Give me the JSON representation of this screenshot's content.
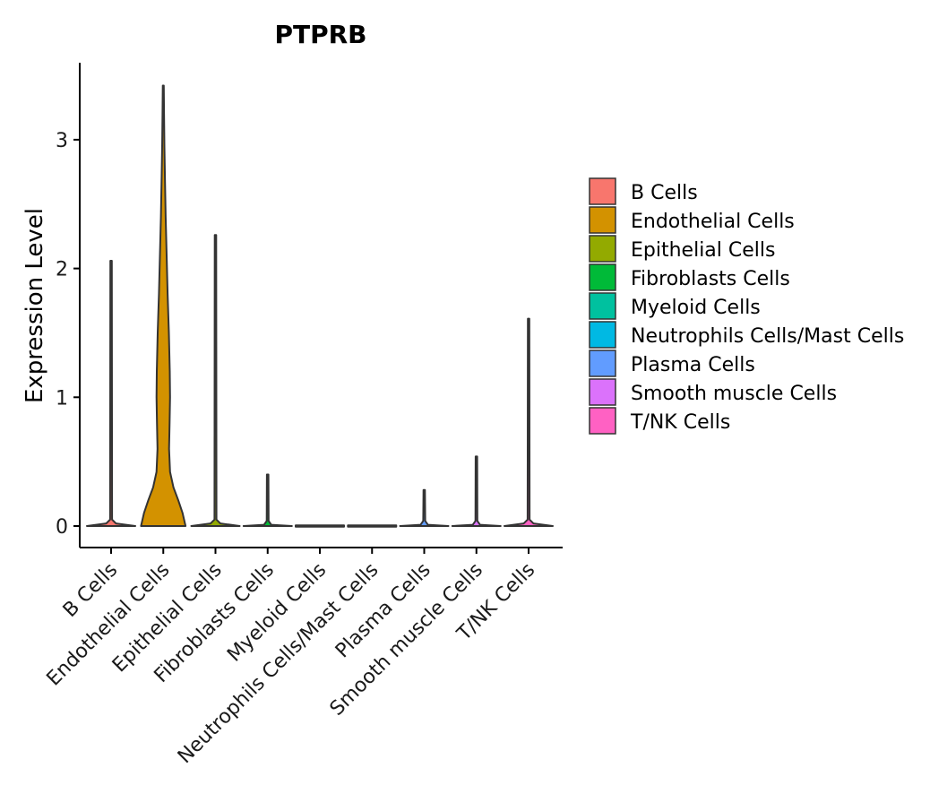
{
  "chart_data": {
    "type": "violin",
    "title": "PTPRB",
    "xlabel": "",
    "ylabel": "Expression Level",
    "ylim": [
      -0.17,
      3.6
    ],
    "yticks": [
      0,
      1,
      2,
      3
    ],
    "categories": [
      "B Cells",
      "Endothelial Cells",
      "Epithelial Cells",
      "Fibroblasts Cells",
      "Myeloid Cells",
      "Neutrophils Cells/Mast Cells",
      "Plasma Cells",
      "Smooth muscle Cells",
      "T/NK Cells"
    ],
    "colors": [
      "#F8766D",
      "#D39200",
      "#93AA00",
      "#00BA38",
      "#00C19F",
      "#00B9E3",
      "#619CFF",
      "#DB72FB",
      "#FF61C3"
    ],
    "series": [
      {
        "name": "B Cells",
        "max": 2.06,
        "profile": [
          [
            0,
            1
          ],
          [
            0.02,
            0.2
          ],
          [
            0.05,
            0.04
          ],
          [
            2.06,
            0.03
          ]
        ]
      },
      {
        "name": "Endothelial Cells",
        "max": 3.42,
        "profile": [
          [
            0,
            0.92
          ],
          [
            0.1,
            0.8
          ],
          [
            0.2,
            0.62
          ],
          [
            0.3,
            0.42
          ],
          [
            0.42,
            0.28
          ],
          [
            0.6,
            0.24
          ],
          [
            0.8,
            0.26
          ],
          [
            1.0,
            0.28
          ],
          [
            1.2,
            0.27
          ],
          [
            1.5,
            0.23
          ],
          [
            1.8,
            0.18
          ],
          [
            2.1,
            0.14
          ],
          [
            2.4,
            0.1
          ],
          [
            2.7,
            0.07
          ],
          [
            2.95,
            0.045
          ],
          [
            3.2,
            0.03
          ],
          [
            3.42,
            0.02
          ]
        ]
      },
      {
        "name": "Epithelial Cells",
        "max": 2.26,
        "profile": [
          [
            0,
            1
          ],
          [
            0.02,
            0.2
          ],
          [
            0.05,
            0.04
          ],
          [
            2.26,
            0.03
          ]
        ]
      },
      {
        "name": "Fibroblasts Cells",
        "max": 0.4,
        "profile": [
          [
            0,
            1
          ],
          [
            0.01,
            0.15
          ],
          [
            0.04,
            0.04
          ],
          [
            0.4,
            0.03
          ]
        ]
      },
      {
        "name": "Myeloid Cells",
        "max": 0.0,
        "profile": [
          [
            0,
            1
          ]
        ]
      },
      {
        "name": "Neutrophils Cells/Mast Cells",
        "max": 0.0,
        "profile": [
          [
            0,
            1
          ]
        ]
      },
      {
        "name": "Plasma Cells",
        "max": 0.28,
        "profile": [
          [
            0,
            1
          ],
          [
            0.01,
            0.15
          ],
          [
            0.04,
            0.04
          ],
          [
            0.28,
            0.03
          ]
        ]
      },
      {
        "name": "Smooth muscle Cells",
        "max": 0.54,
        "profile": [
          [
            0,
            1
          ],
          [
            0.01,
            0.15
          ],
          [
            0.04,
            0.04
          ],
          [
            0.54,
            0.03
          ]
        ]
      },
      {
        "name": "T/NK Cells",
        "max": 1.61,
        "profile": [
          [
            0,
            1
          ],
          [
            0.02,
            0.2
          ],
          [
            0.05,
            0.04
          ],
          [
            1.61,
            0.03
          ]
        ]
      }
    ],
    "legend": {
      "position": "right",
      "entries": [
        "B Cells",
        "Endothelial Cells",
        "Epithelial Cells",
        "Fibroblasts Cells",
        "Myeloid Cells",
        "Neutrophils Cells/Mast Cells",
        "Plasma Cells",
        "Smooth muscle Cells",
        "T/NK Cells"
      ]
    },
    "grid": false
  }
}
